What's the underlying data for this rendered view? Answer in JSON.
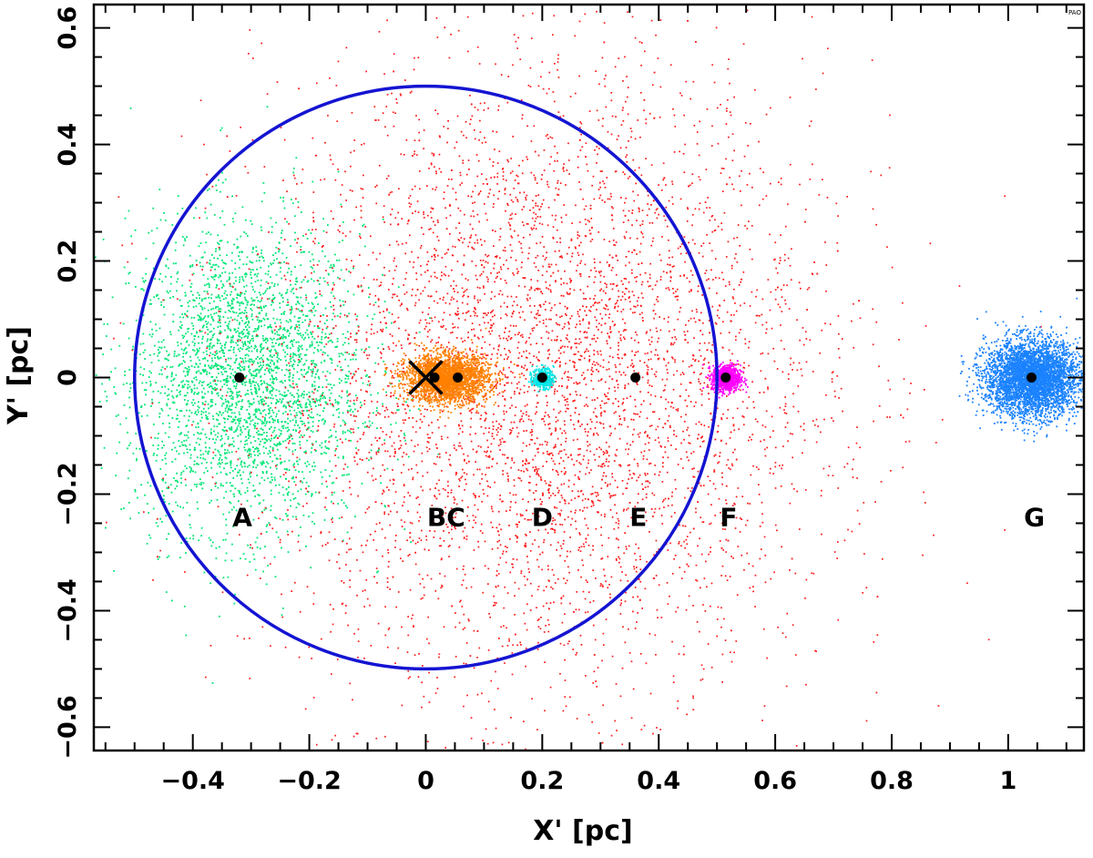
{
  "chart_data": {
    "type": "scatter",
    "title": "",
    "xlabel": "X' [pc]",
    "ylabel": "Y' [pc]",
    "xlim": [
      -0.57,
      1.13
    ],
    "ylim": [
      -0.64,
      0.64
    ],
    "xticks_major": [
      -0.4,
      -0.2,
      0,
      0.2,
      0.4,
      0.6,
      0.8,
      1
    ],
    "xtick_labels": [
      "−0.4",
      "−0.2",
      "0",
      "0.2",
      "0.4",
      "0.6",
      "0.8",
      "1"
    ],
    "yticks_major": [
      -0.6,
      -0.4,
      -0.2,
      0,
      0.2,
      0.4,
      0.6
    ],
    "ytick_labels": [
      "−0.6",
      "−0.4",
      "−0.2",
      "0",
      "0.2",
      "0.4",
      "0.6"
    ],
    "grid": false,
    "legend": "none",
    "corner_mark": "PAO",
    "clusters": [
      {
        "name": "green",
        "color": "#00e676",
        "center": [
          -0.31,
          0.0
        ],
        "spread": [
          0.1,
          0.13
        ],
        "count": 3200,
        "dot": 1.8
      },
      {
        "name": "red",
        "color": "#ff1a1a",
        "center": [
          0.2,
          0.0
        ],
        "spread": [
          0.24,
          0.26
        ],
        "count": 5500,
        "dot": 1.7
      },
      {
        "name": "orange",
        "color": "#ff8000",
        "center": [
          0.035,
          0.0
        ],
        "spread": [
          0.035,
          0.02
        ],
        "count": 2600,
        "dot": 1.8
      },
      {
        "name": "cyan",
        "color": "#00e5e5",
        "center": [
          0.2,
          0.0
        ],
        "spread": [
          0.009,
          0.009
        ],
        "count": 350,
        "dot": 1.8
      },
      {
        "name": "magenta",
        "color": "#ff00ff",
        "center": [
          0.515,
          0.0
        ],
        "spread": [
          0.012,
          0.011
        ],
        "count": 900,
        "dot": 1.8
      },
      {
        "name": "blue",
        "color": "#1a82ff",
        "center": [
          1.04,
          0.0
        ],
        "spread": [
          0.04,
          0.032
        ],
        "count": 4200,
        "dot": 1.8
      }
    ],
    "markers": [
      {
        "label": "A",
        "x": -0.32,
        "y": 0
      },
      {
        "label": "B",
        "x": 0.015,
        "y": 0
      },
      {
        "label": "C",
        "x": 0.055,
        "y": 0
      },
      {
        "label": "D",
        "x": 0.2,
        "y": 0
      },
      {
        "label": "E",
        "x": 0.36,
        "y": 0
      },
      {
        "label": "F",
        "x": 0.515,
        "y": 0
      },
      {
        "label": "G",
        "x": 1.04,
        "y": 0
      }
    ],
    "cross_marker": {
      "x": 0.0,
      "y": 0.0
    },
    "circle": {
      "cx": 0.0,
      "cy": 0.0,
      "r": 0.5,
      "color": "#1414d2"
    },
    "annotations": [
      {
        "text": "A",
        "x": -0.315,
        "y": -0.255
      },
      {
        "text": "BC",
        "x": 0.035,
        "y": -0.255
      },
      {
        "text": "D",
        "x": 0.2,
        "y": -0.255
      },
      {
        "text": "E",
        "x": 0.365,
        "y": -0.255
      },
      {
        "text": "F",
        "x": 0.52,
        "y": -0.255
      },
      {
        "text": "G",
        "x": 1.045,
        "y": -0.255
      }
    ]
  }
}
